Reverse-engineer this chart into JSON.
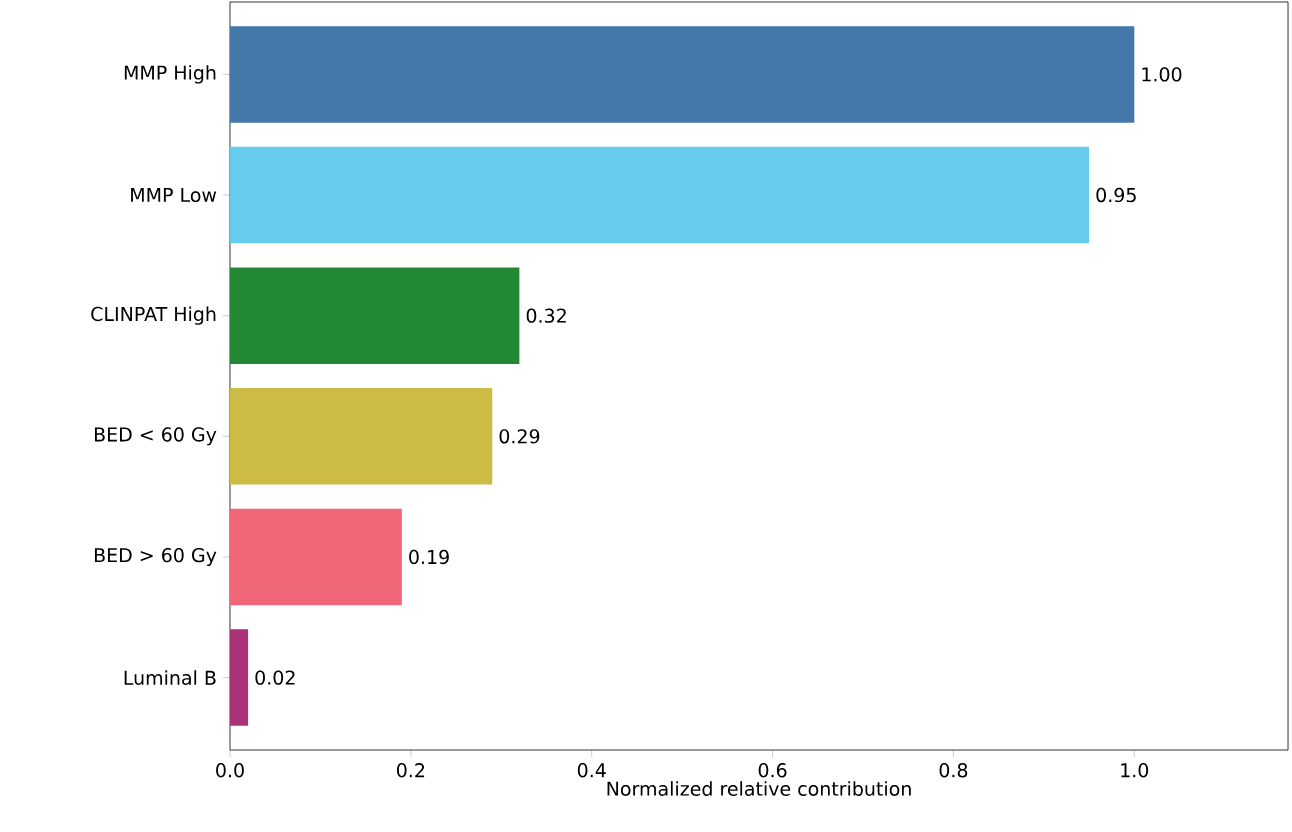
{
  "chart_data": {
    "type": "bar",
    "orientation": "horizontal",
    "xlabel": "Normalized relative contribution",
    "categories": [
      "MMP High",
      "MMP Low",
      "CLINPAT High",
      "BED < 60 Gy",
      "BED > 60 Gy",
      "Luminal B"
    ],
    "values": [
      1.0,
      0.95,
      0.32,
      0.29,
      0.19,
      0.02
    ],
    "value_labels": [
      "1.00",
      "0.95",
      "0.32",
      "0.29",
      "0.19",
      "0.02"
    ],
    "colors": [
      "#4477aa",
      "#66ccee",
      "#228833",
      "#ccbb44",
      "#ee6677",
      "#aa3377"
    ],
    "xlim": [
      0,
      1.17
    ],
    "xticks": [
      {
        "value": 0,
        "label": "0.0"
      },
      {
        "value": 0.2,
        "label": "0.2"
      },
      {
        "value": 0.4,
        "label": "0.4"
      },
      {
        "value": 0.6,
        "label": "0.6"
      },
      {
        "value": 0.8,
        "label": "0.8"
      },
      {
        "value": 1.0,
        "label": "1.0"
      }
    ],
    "grid": false
  }
}
